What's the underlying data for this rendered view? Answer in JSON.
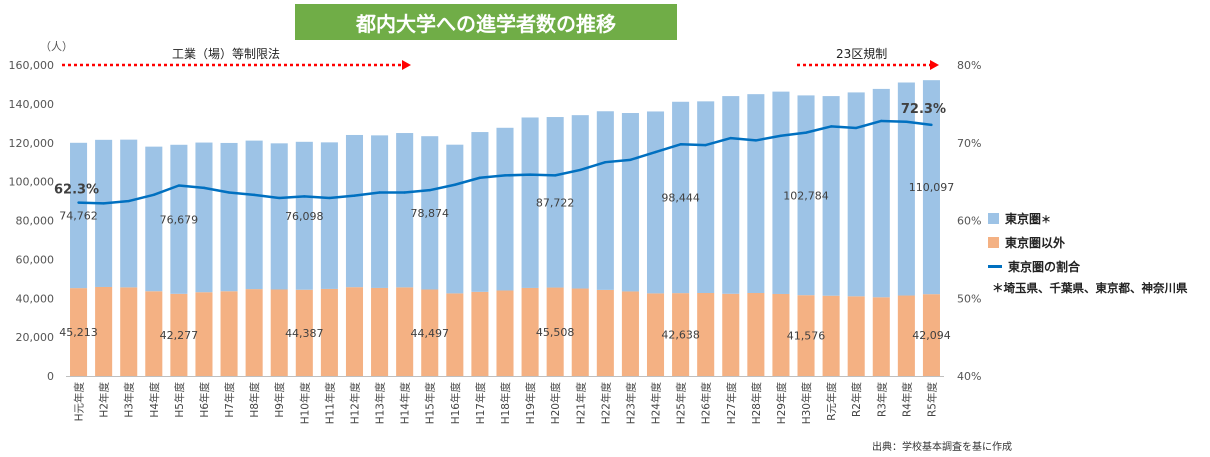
{
  "title": "都内大学への進学者数の推移",
  "unit_label": "（人）",
  "source": "出典：学校基本調査を基に作成",
  "annotations": {
    "law_label": "工業（場）等制限法",
    "regulation_label": "23区規制",
    "arrow_color": "#ff0000"
  },
  "legend": {
    "tokyo_area": "東京圏",
    "tokyo_area_mark": "＊",
    "outside": "東京圏以外",
    "ratio": "東京圏の割合",
    "note": "＊埼玉県、千葉県、東京都、神奈川県"
  },
  "colors": {
    "tokyo_area": "#9dc3e6",
    "outside": "#f4b183",
    "ratio_line": "#0070c0",
    "title_bg": "#70ad47"
  },
  "chart_data": {
    "type": "bar",
    "stacked": true,
    "categories": [
      "H元年度",
      "H2年度",
      "H3年度",
      "H4年度",
      "H5年度",
      "H6年度",
      "H7年度",
      "H8年度",
      "H9年度",
      "H10年度",
      "H11年度",
      "H12年度",
      "H13年度",
      "H14年度",
      "H15年度",
      "H16年度",
      "H17年度",
      "H18年度",
      "H19年度",
      "H20年度",
      "H21年度",
      "H22年度",
      "H23年度",
      "H24年度",
      "H25年度",
      "H26年度",
      "H27年度",
      "H28年度",
      "H29年度",
      "H30年度",
      "R元年度",
      "R2年度",
      "R3年度",
      "R4年度",
      "R5年度"
    ],
    "series": [
      {
        "name": "東京圏以外",
        "values": [
          45213,
          45800,
          45600,
          43600,
          42277,
          43100,
          43600,
          44700,
          44500,
          44387,
          44800,
          45700,
          45300,
          45600,
          44497,
          42500,
          43300,
          44000,
          45300,
          45508,
          45000,
          44300,
          43500,
          42500,
          42638,
          42700,
          42300,
          42700,
          42200,
          41576,
          41300,
          41000,
          40500,
          41400,
          42094
        ]
      },
      {
        "name": "東京圏",
        "values": [
          74762,
          75700,
          76000,
          74400,
          76679,
          77000,
          76300,
          76400,
          75200,
          76098,
          75400,
          78300,
          78500,
          79400,
          78874,
          76500,
          82200,
          83700,
          87700,
          87722,
          89200,
          91900,
          91800,
          93600,
          98444,
          98600,
          101700,
          102300,
          104100,
          102784,
          102700,
          104900,
          107200,
          109600,
          110097
        ]
      },
      {
        "name": "東京圏の割合",
        "axis": "right",
        "values": [
          62.3,
          62.2,
          62.5,
          63.3,
          64.5,
          64.2,
          63.6,
          63.3,
          62.9,
          63.1,
          62.9,
          63.2,
          63.6,
          63.6,
          63.9,
          64.6,
          65.5,
          65.8,
          65.9,
          65.8,
          66.5,
          67.5,
          67.8,
          68.8,
          69.8,
          69.7,
          70.6,
          70.3,
          70.9,
          71.3,
          72.1,
          71.9,
          72.8,
          72.7,
          72.3
        ]
      }
    ],
    "bar_value_labels": {
      "indices": [
        0,
        4,
        9,
        14,
        19,
        24,
        29,
        34
      ],
      "outside": [
        "45,213",
        "42,277",
        "44,387",
        "44,497",
        "45,508",
        "42,638",
        "41,576",
        "42,094"
      ],
      "tokyo_area": [
        "74,762",
        "76,679",
        "76,098",
        "78,874",
        "87,722",
        "98,444",
        "102,784",
        "110,097"
      ]
    },
    "ratio_labels": {
      "first": "62.3%",
      "last": "72.3%"
    },
    "y_left": {
      "min": 0,
      "max": 160000,
      "ticks": [
        "0",
        "20,000",
        "40,000",
        "60,000",
        "80,000",
        "100,000",
        "120,000",
        "140,000",
        "160,000"
      ]
    },
    "y_right": {
      "min": 40,
      "max": 80,
      "ticks": [
        "40%",
        "50%",
        "60%",
        "70%",
        "80%"
      ]
    },
    "grid": false,
    "legend_position": "right"
  }
}
